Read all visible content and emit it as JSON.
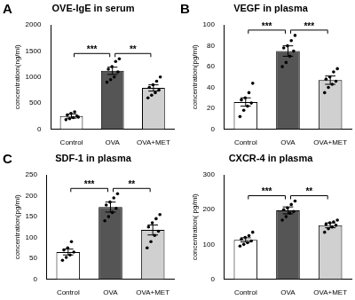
{
  "chart_data": [
    {
      "panel": "A",
      "type": "bar",
      "title": "OVE-IgE in serum",
      "y_label": "concentration(ng/ml)",
      "categories": [
        "Control",
        "OVA",
        "OVA+MET"
      ],
      "values": [
        250,
        1120,
        790
      ],
      "errors": [
        40,
        70,
        60
      ],
      "points": [
        [
          180,
          200,
          220,
          250,
          270,
          300,
          330,
          230
        ],
        [
          900,
          950,
          1000,
          1100,
          1150,
          1200,
          1300,
          1350
        ],
        [
          600,
          650,
          700,
          750,
          800,
          850,
          920,
          1000
        ]
      ],
      "colors": [
        "#ffffff",
        "#555555",
        "#d0d0d0"
      ],
      "ylim": [
        0,
        2000
      ],
      "yticks": [
        0,
        500,
        1000,
        1500,
        2000
      ],
      "grid": false,
      "annotations": [
        {
          "from": "Control",
          "to": "OVA",
          "label": "***"
        },
        {
          "from": "OVA",
          "to": "OVA+MET",
          "label": "**"
        }
      ]
    },
    {
      "panel": "B",
      "type": "bar",
      "title": "VEGF in plasma",
      "y_label": "concentration(pg/ml)",
      "categories": [
        "Control",
        "OVA",
        "OVA+MET"
      ],
      "values": [
        26,
        75,
        47
      ],
      "errors": [
        4,
        5,
        4
      ],
      "points": [
        [
          12,
          18,
          22,
          25,
          28,
          30,
          35,
          44
        ],
        [
          60,
          64,
          70,
          75,
          78,
          80,
          85,
          90
        ],
        [
          35,
          40,
          43,
          46,
          48,
          50,
          55,
          58
        ]
      ],
      "colors": [
        "#ffffff",
        "#555555",
        "#d0d0d0"
      ],
      "ylim": [
        0,
        100
      ],
      "yticks": [
        0,
        20,
        40,
        60,
        80,
        100
      ],
      "grid": false,
      "annotations": [
        {
          "from": "Control",
          "to": "OVA",
          "label": "***"
        },
        {
          "from": "OVA",
          "to": "OVA+MET",
          "label": "***"
        }
      ]
    },
    {
      "panel": "C",
      "type": "bar",
      "title": "SDF-1 in plasma",
      "y_label": "concentration(pg/ml)",
      "categories": [
        "Control",
        "OVA",
        "OVA+MET"
      ],
      "values": [
        65,
        173,
        118
      ],
      "errors": [
        7,
        12,
        12
      ],
      "points": [
        [
          45,
          52,
          58,
          65,
          70,
          75,
          90
        ],
        [
          140,
          150,
          160,
          170,
          178,
          185,
          195,
          205
        ],
        [
          75,
          90,
          105,
          115,
          125,
          135,
          145,
          155
        ]
      ],
      "colors": [
        "#ffffff",
        "#555555",
        "#d0d0d0"
      ],
      "ylim": [
        0,
        250
      ],
      "yticks": [
        0,
        50,
        100,
        150,
        200,
        250
      ],
      "grid": false,
      "annotations": [
        {
          "from": "Control",
          "to": "OVA",
          "label": "***"
        },
        {
          "from": "OVA",
          "to": "OVA+MET",
          "label": "**"
        }
      ]
    },
    {
      "type": "bar",
      "title": "CXCR-4 in plasma",
      "y_label": "concentration( pg/ml)",
      "categories": [
        "Control",
        "OVA",
        "OVA+MET"
      ],
      "values": [
        113,
        198,
        155
      ],
      "errors": [
        6,
        10,
        7
      ],
      "points": [
        [
          95,
          100,
          105,
          110,
          115,
          120,
          125,
          135
        ],
        [
          170,
          180,
          190,
          195,
          200,
          205,
          215,
          225
        ],
        [
          135,
          145,
          150,
          155,
          158,
          162,
          165,
          170
        ]
      ],
      "colors": [
        "#ffffff",
        "#555555",
        "#d0d0d0"
      ],
      "ylim": [
        0,
        300
      ],
      "yticks": [
        0,
        100,
        200,
        300
      ],
      "grid": false,
      "annotations": [
        {
          "from": "Control",
          "to": "OVA",
          "label": "***"
        },
        {
          "from": "OVA",
          "to": "OVA+MET",
          "label": "**"
        }
      ]
    }
  ]
}
